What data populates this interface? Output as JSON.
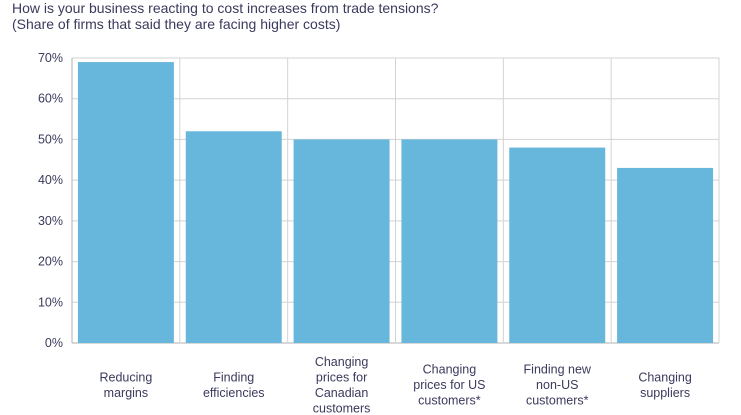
{
  "chart_data": {
    "type": "bar",
    "title": "How is your business reacting to cost increases from trade tensions?",
    "subtitle": "(Share of firms that said they are facing higher costs)",
    "categories": [
      [
        "Reducing",
        "margins"
      ],
      [
        "Finding",
        "efficiencies"
      ],
      [
        "Changing",
        "prices for",
        "Canadian",
        "customers"
      ],
      [
        "Changing",
        "prices for US",
        "customers*"
      ],
      [
        "Finding new",
        "non-US",
        "customers*"
      ],
      [
        "Changing",
        "suppliers"
      ]
    ],
    "values": [
      69,
      52,
      50,
      50,
      48,
      43
    ],
    "ylim": [
      0,
      70
    ],
    "yticks": [
      "0%",
      "10%",
      "20%",
      "30%",
      "40%",
      "50%",
      "60%",
      "70%"
    ],
    "ytick_values": [
      0,
      10,
      20,
      30,
      40,
      50,
      60,
      70
    ],
    "grid": true,
    "colors": {
      "bar": "#67b6dc",
      "grid": "#d3d3d3",
      "axis": "#b0b0b0"
    }
  }
}
